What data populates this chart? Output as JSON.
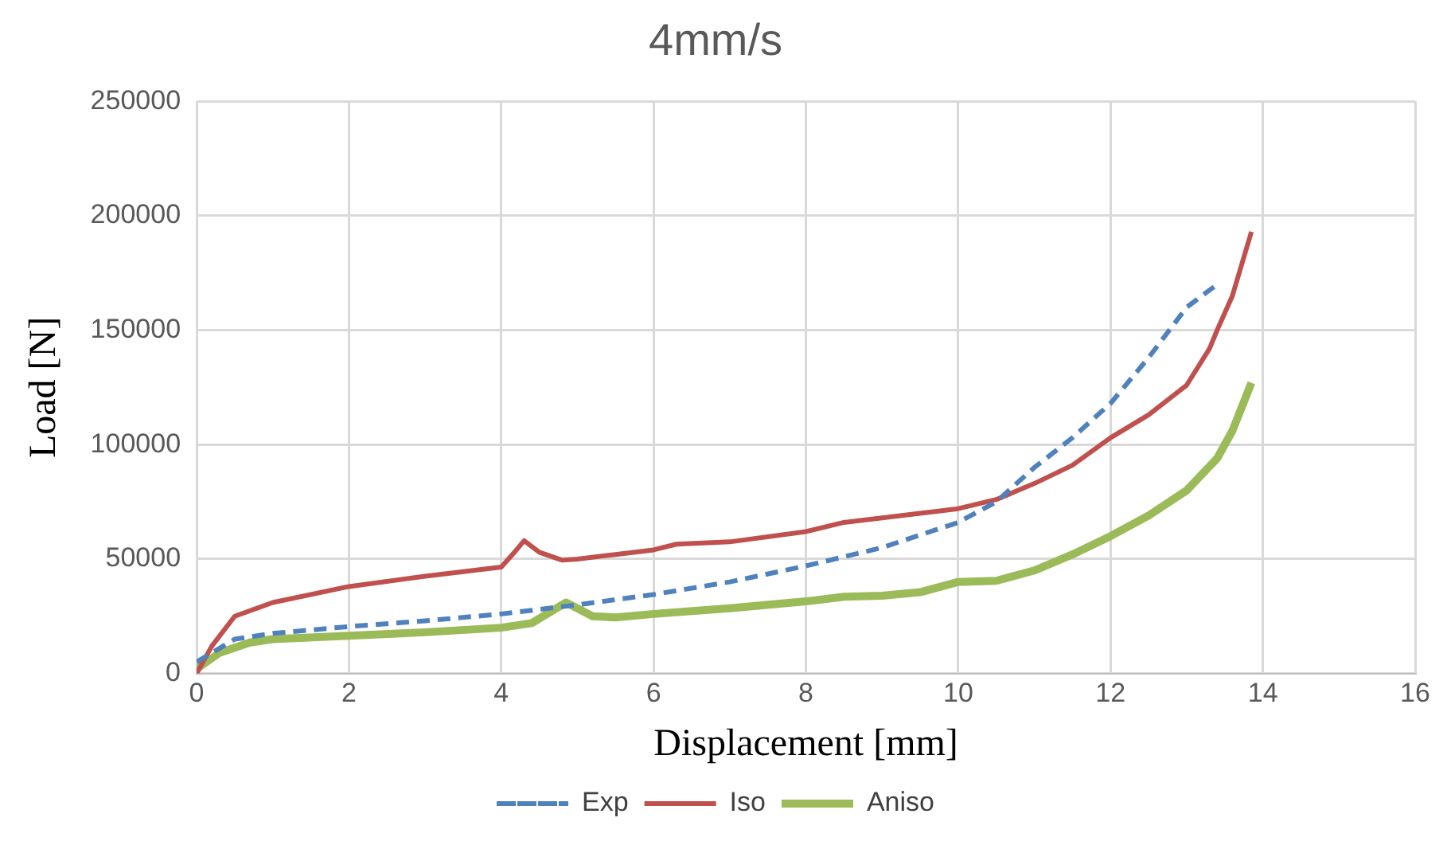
{
  "chart_data": {
    "type": "line",
    "title": "4mm/s",
    "xlabel": "Displacement [mm]",
    "ylabel": "Load [N]",
    "xlim": [
      0,
      16
    ],
    "xticks": [
      0,
      2,
      4,
      6,
      8,
      10,
      12,
      14,
      16
    ],
    "ylim": [
      0,
      250000
    ],
    "yticks": [
      0,
      50000,
      100000,
      150000,
      200000,
      250000
    ],
    "grid": true,
    "legend": "bottom",
    "marker": "none",
    "series": [
      {
        "name": "Exp",
        "color": "#4f81bd",
        "line_style": "dashed",
        "x": [
          0,
          0.5,
          1,
          2,
          3,
          4,
          5,
          6,
          7,
          8,
          9,
          10,
          10.5,
          11,
          11.5,
          12,
          12.5,
          13,
          13.4
        ],
        "values": [
          5000,
          15000,
          17500,
          20500,
          23000,
          26000,
          30000,
          34500,
          40000,
          47000,
          55000,
          66000,
          75000,
          90000,
          103000,
          118000,
          138000,
          160000,
          170000
        ]
      },
      {
        "name": "Iso",
        "color": "#c0504d",
        "line_style": "solid",
        "x": [
          0,
          0.2,
          0.5,
          1,
          2,
          3,
          4,
          4.2,
          4.3,
          4.5,
          4.8,
          5,
          5.5,
          6,
          6.3,
          7,
          8,
          8.5,
          9,
          10,
          10.5,
          11,
          11.5,
          12,
          12.5,
          13,
          13.3,
          13.4,
          13.6,
          13.85
        ],
        "values": [
          0,
          12000,
          25000,
          31000,
          38000,
          42500,
          46500,
          54000,
          58000,
          53000,
          49500,
          50000,
          52000,
          54000,
          56500,
          57500,
          62000,
          66000,
          68000,
          72000,
          76000,
          83000,
          91000,
          103000,
          113000,
          126000,
          142000,
          150000,
          165000,
          193000
        ]
      },
      {
        "name": "Aniso",
        "color": "#9bbb59",
        "line_style": "solid",
        "x": [
          0,
          0.3,
          0.7,
          1,
          2,
          3,
          4,
          4.4,
          4.85,
          5.2,
          5.5,
          6,
          7,
          8,
          8.5,
          9,
          9.5,
          10,
          10.5,
          11,
          11.5,
          12,
          12.5,
          13,
          13.4,
          13.6,
          13.85
        ],
        "values": [
          2000,
          9000,
          13500,
          15000,
          16500,
          18000,
          20000,
          22000,
          31000,
          25000,
          24500,
          26000,
          28500,
          31500,
          33500,
          34000,
          35500,
          40000,
          40500,
          45000,
          52000,
          60000,
          69000,
          80000,
          94000,
          106000,
          127000
        ]
      }
    ]
  }
}
